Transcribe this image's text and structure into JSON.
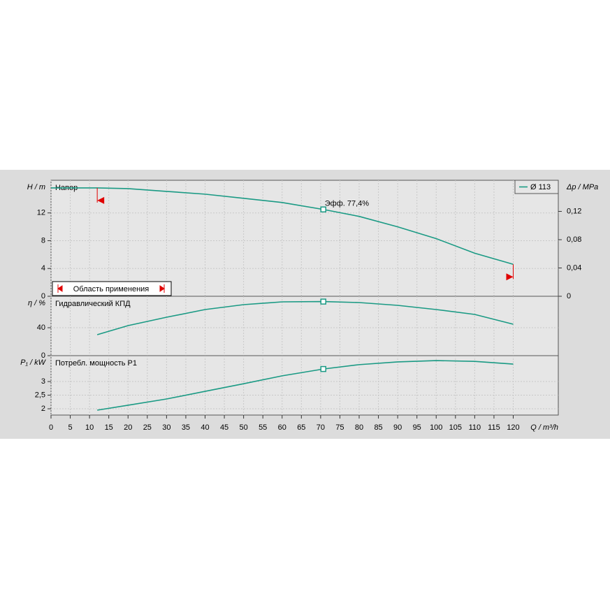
{
  "chart_data": [
    {
      "type": "line",
      "title": "Напор",
      "ylabel": "H / m",
      "y2label": "Δp / MPa",
      "x": [
        0,
        12,
        20,
        30,
        40,
        50,
        60,
        70.7,
        80,
        90,
        100,
        110,
        120
      ],
      "series": [
        {
          "name": "Ø 113",
          "color": "#1a9a84",
          "values": [
            15.6,
            15.6,
            15.5,
            15.1,
            14.7,
            14.1,
            13.5,
            12.5,
            11.5,
            10.0,
            8.3,
            6.2,
            4.6
          ]
        }
      ],
      "xlim": [
        0,
        131.7
      ],
      "ylim": [
        0,
        16.7
      ],
      "yticks": [
        0,
        4,
        8,
        12
      ],
      "y2lim": [
        0,
        0.164
      ],
      "y2ticks": [
        0,
        {
          "value": 0.04,
          "label": "0,04"
        },
        {
          "value": 0.08,
          "label": "0,08"
        },
        {
          "value": 0.12,
          "label": "0,12"
        }
      ],
      "operating_point": {
        "x": 70.7,
        "y": 12.5
      },
      "annotation": "Эфф.  77,4%",
      "application_range": [
        12,
        120
      ],
      "range_label": "Область применения",
      "grid": true
    },
    {
      "type": "line",
      "title": "Гидравлический КПД",
      "ylabel": "η / %",
      "x": [
        12,
        20,
        30,
        40,
        50,
        60,
        70.7,
        80,
        90,
        100,
        110,
        120
      ],
      "series": [
        {
          "name": "Ø 113",
          "color": "#1a9a84",
          "values": [
            30,
            43,
            55,
            66,
            73,
            77,
            77.4,
            76,
            72,
            66,
            59,
            45
          ]
        }
      ],
      "xlim": [
        0,
        131.7
      ],
      "ylim": [
        0,
        85
      ],
      "yticks": [
        0,
        40
      ],
      "operating_point": {
        "x": 70.7,
        "y": 77.4
      },
      "grid": true
    },
    {
      "type": "line",
      "title": "Потребл. мощность P1",
      "ylabel": "P₁ / kW",
      "xlabel": "Q / m³/h",
      "x": [
        12,
        20,
        30,
        40,
        50,
        60,
        70.7,
        80,
        90,
        100,
        110,
        120
      ],
      "series": [
        {
          "name": "Ø 113",
          "color": "#1a9a84",
          "values": [
            1.95,
            2.13,
            2.36,
            2.64,
            2.92,
            3.21,
            3.46,
            3.62,
            3.72,
            3.77,
            3.74,
            3.64
          ]
        }
      ],
      "xlim": [
        0,
        131.7
      ],
      "ylim": [
        1.77,
        3.95
      ],
      "yticks": [
        2,
        {
          "value": 2.5,
          "label": "2,5"
        },
        3
      ],
      "xticks": [
        0,
        5,
        10,
        15,
        20,
        25,
        30,
        35,
        40,
        45,
        50,
        55,
        60,
        65,
        70,
        75,
        80,
        85,
        90,
        95,
        100,
        105,
        110,
        115,
        120
      ],
      "operating_point": {
        "x": 70.7,
        "y": 3.46
      },
      "grid": true
    }
  ]
}
